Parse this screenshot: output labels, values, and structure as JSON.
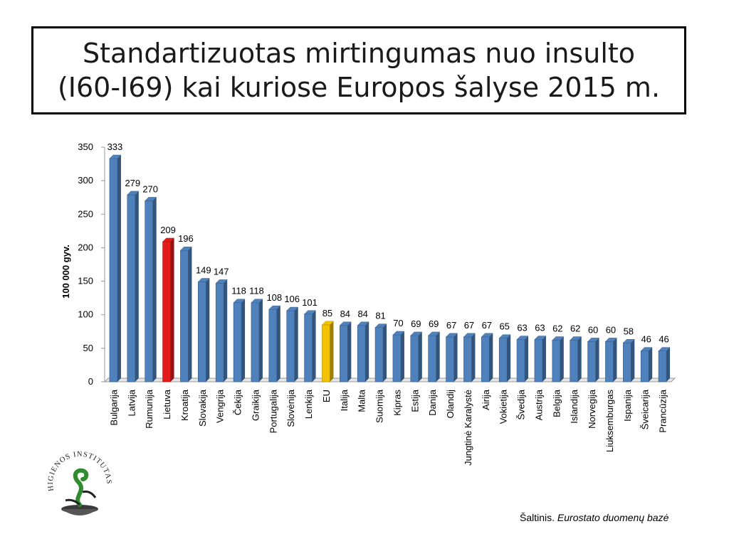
{
  "title": "Standartizuotas mirtingumas nuo insulto (I60-I69) kai kuriose Europos šalyse 2015 m.",
  "source": {
    "prefix": "Šaltinis. ",
    "name": "Eurostato duomenų bazė"
  },
  "logo": {
    "text": "HIGIENOS INSTITUTAS"
  },
  "colors": {
    "default": "#4f81bd",
    "highlight_lt": "#e31b1b",
    "highlight_eu": "#f2c200"
  },
  "chart_data": {
    "type": "bar",
    "ylabel": "100 000 gyv.",
    "xlabel": "",
    "ylim": [
      0,
      350
    ],
    "yticks": [
      0,
      50,
      100,
      150,
      200,
      250,
      300,
      350
    ],
    "grid": false,
    "categories": [
      "Bulgarija",
      "Latvija",
      "Rumunija",
      "Lietuva",
      "Kroatija",
      "Slovakija",
      "Vengrija",
      "Čekija",
      "Graikija",
      "Portugalija",
      "Slovėnija",
      "Lenkija",
      "EU",
      "Italija",
      "Malta",
      "Suomija",
      "Kipras",
      "Estija",
      "Danija",
      "Olandij",
      "Jungtinė Karalystė",
      "Airija",
      "Vokietija",
      "Švedija",
      "Austrija",
      "Belgija",
      "Islandija",
      "Norvegija",
      "Liuksemburgas",
      "Ispanija",
      "Šveicarija",
      "Prancūzija"
    ],
    "values": [
      333,
      279,
      270,
      209,
      196,
      149,
      147,
      118,
      118,
      108,
      106,
      101,
      85,
      84,
      84,
      81,
      70,
      69,
      69,
      67,
      67,
      67,
      65,
      63,
      63,
      62,
      62,
      60,
      60,
      58,
      46,
      46
    ],
    "highlights": {
      "Lietuva": "highlight_lt",
      "EU": "highlight_eu"
    }
  }
}
